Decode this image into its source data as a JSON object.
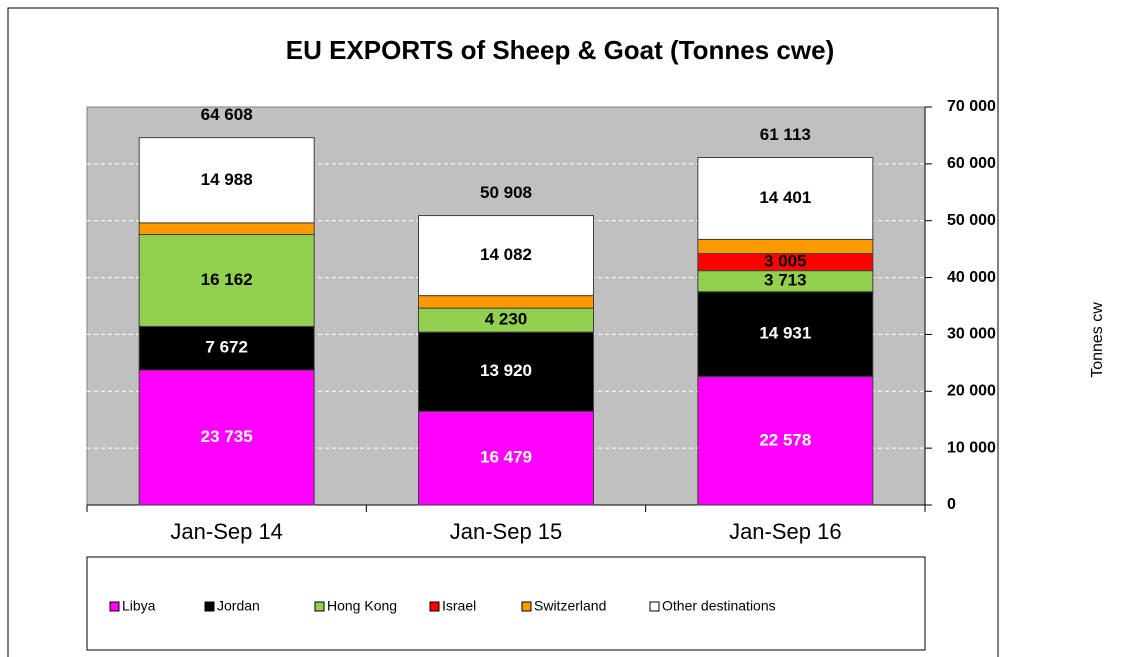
{
  "chart_data": {
    "type": "stacked_bar",
    "title": "EU EXPORTS of Sheep & Goat (Tonnes cwe)",
    "ylabel": "Tonnes cw",
    "categories": [
      "Jan-Sep 14",
      "Jan-Sep 15",
      "Jan-Sep 16"
    ],
    "series": [
      {
        "name": "Libya",
        "color": "#ff00ff",
        "label_color": "#ffffff",
        "values": [
          23735,
          16479,
          22578
        ],
        "value_labels": [
          "23 735",
          "16 479",
          "22 578"
        ]
      },
      {
        "name": "Jordan",
        "color": "#000000",
        "label_color": "#ffffff",
        "values": [
          7672,
          13920,
          14931
        ],
        "value_labels": [
          "7 672",
          "13 920",
          "14 931"
        ]
      },
      {
        "name": "Hong Kong",
        "color": "#92d050",
        "label_color": "#000000",
        "values": [
          16162,
          4230,
          3713
        ],
        "value_labels": [
          "16 162",
          "4 230",
          "3 713"
        ]
      },
      {
        "name": "Israel",
        "color": "#ff0000",
        "label_color": "#000000",
        "values": [
          null,
          null,
          3005
        ],
        "value_labels": [
          null,
          null,
          "3 005"
        ]
      },
      {
        "name": "Switzerland",
        "color": "#ff9900",
        "label_color": "#000000",
        "values": [
          2051,
          2197,
          2485
        ],
        "value_labels": [
          null,
          null,
          null
        ]
      },
      {
        "name": "Other destinations",
        "color": "#ffffff",
        "label_color": "#000000",
        "values": [
          14988,
          14082,
          14401
        ],
        "value_labels": [
          "14 988",
          "14 082",
          "14 401"
        ]
      }
    ],
    "totals": [
      64608,
      50908,
      61113
    ],
    "total_labels": [
      "64 608",
      "50 908",
      "61 113"
    ],
    "ylim": [
      0,
      70000
    ],
    "yticks": [
      0,
      {
        "value": 10000,
        "label": "10 000"
      },
      {
        "value": 20000,
        "label": "20 000"
      },
      {
        "value": 30000,
        "label": "30 000"
      },
      {
        "value": 40000,
        "label": "40 000"
      },
      {
        "value": 50000,
        "label": "50 000"
      },
      {
        "value": 60000,
        "label": "60 000"
      },
      {
        "value": 70000,
        "label": "70 000"
      }
    ],
    "grid": true,
    "plot_background": "#c0c0c0",
    "legend": "bottom"
  }
}
